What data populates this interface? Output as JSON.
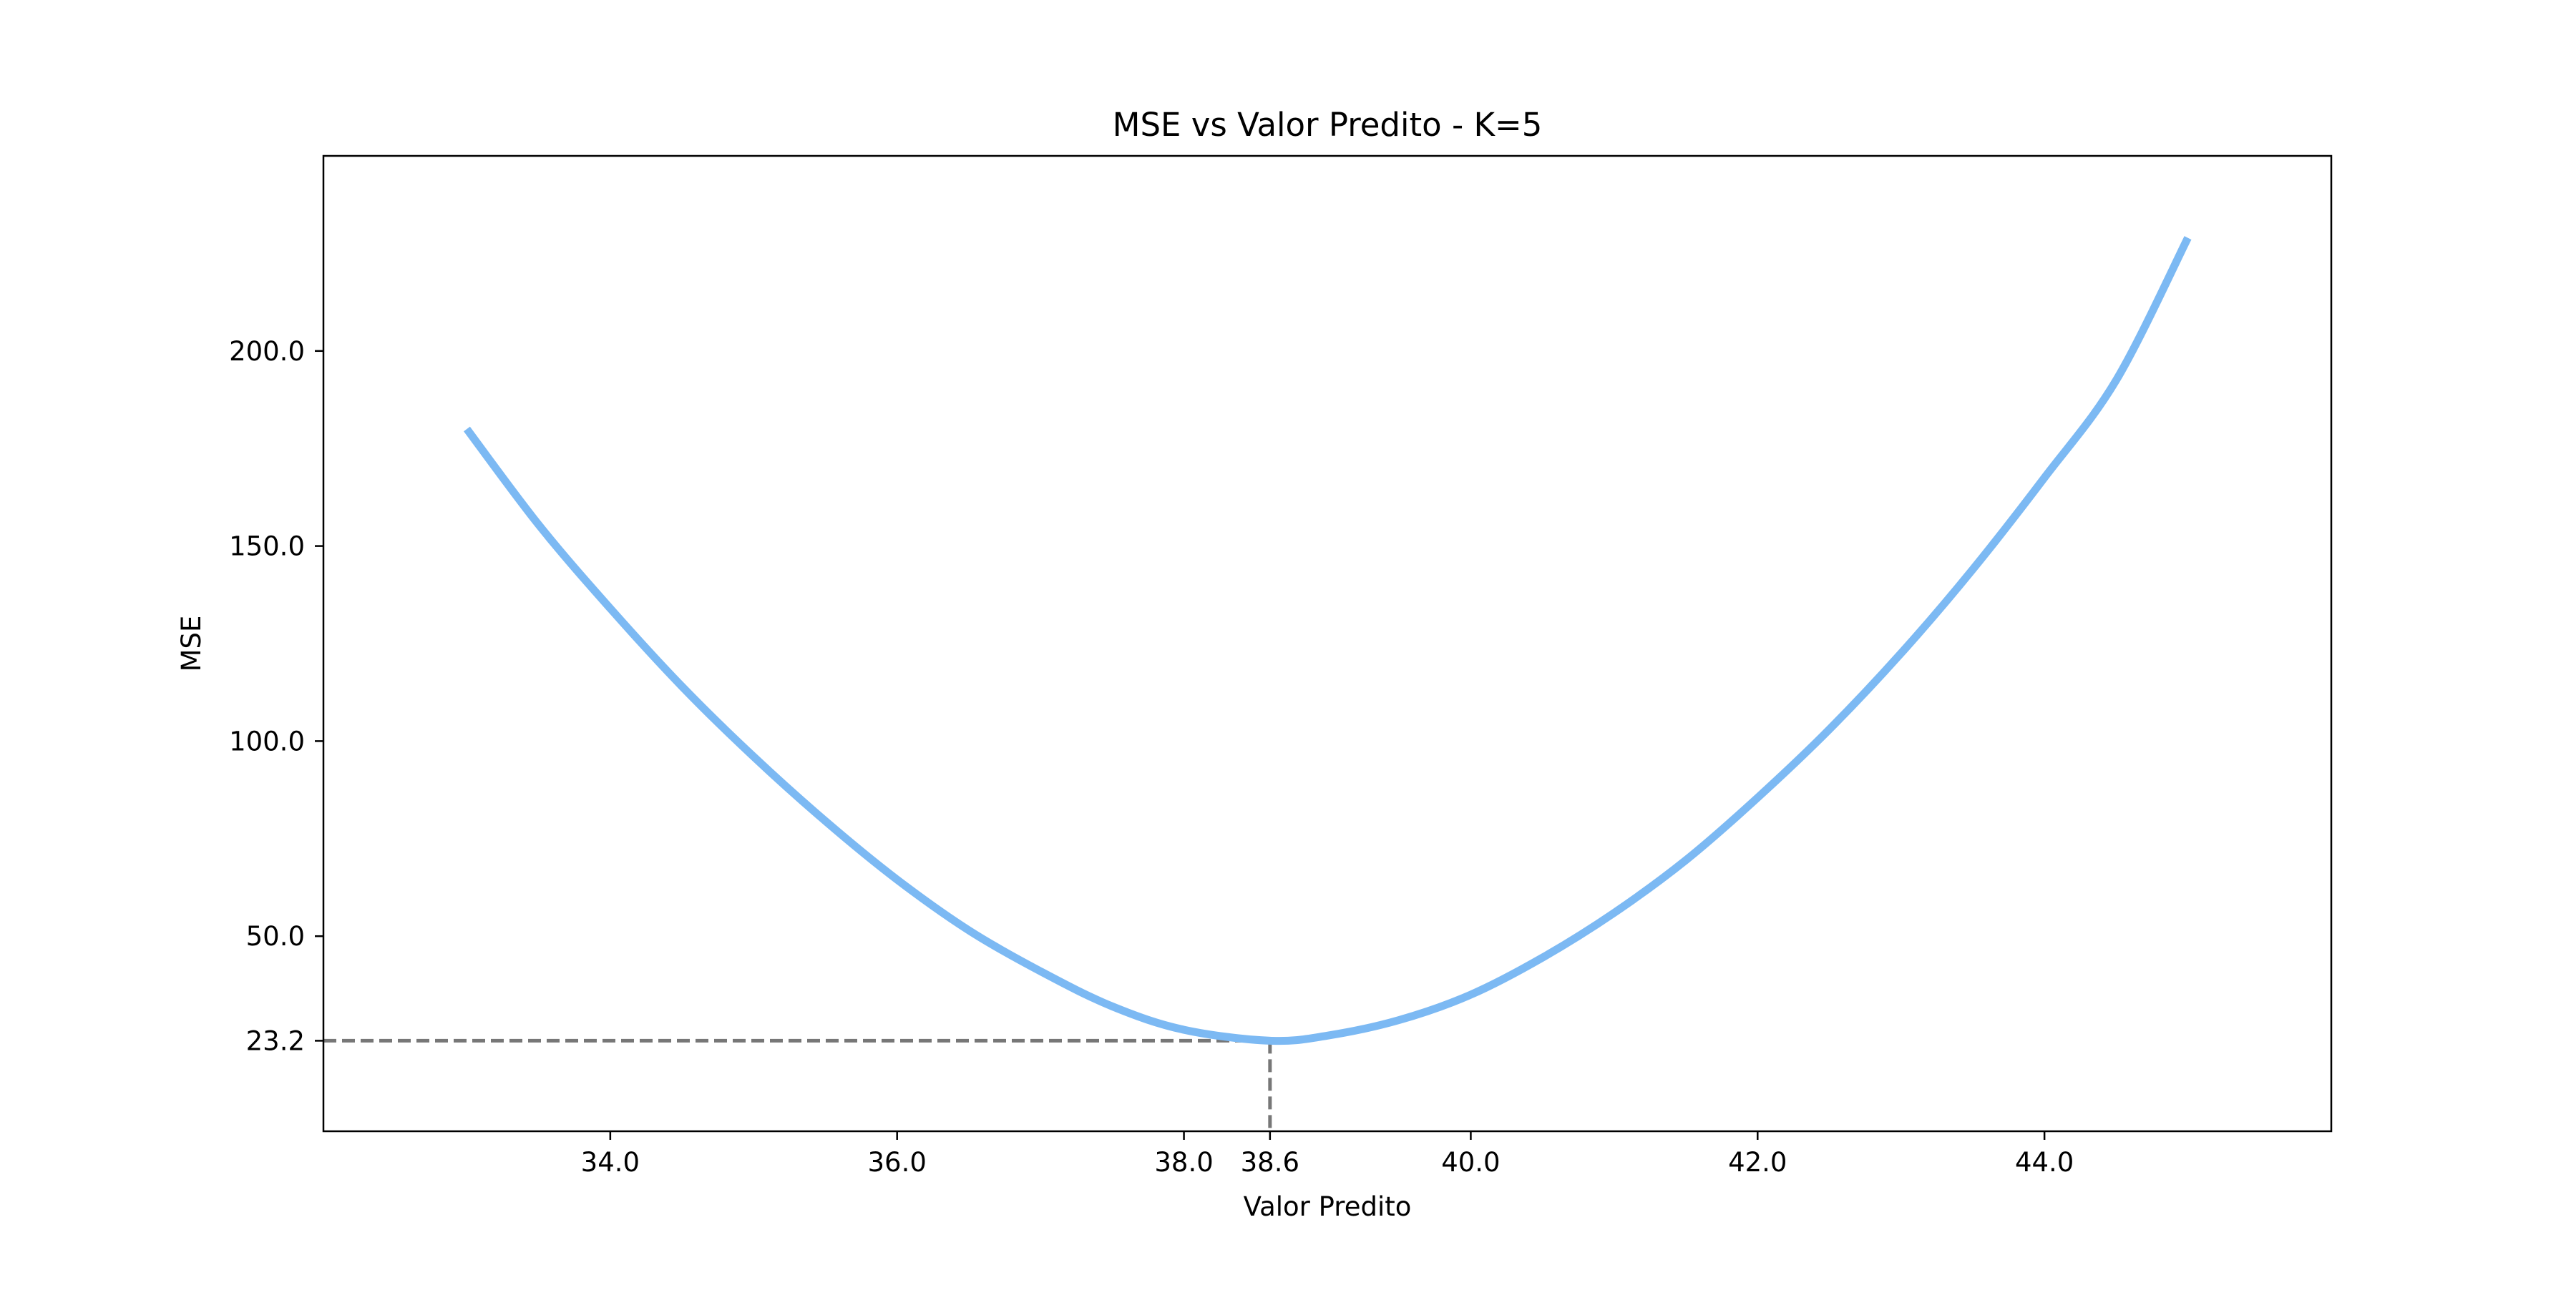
{
  "chart_data": {
    "type": "line",
    "title": "MSE vs Valor Predito - K=5",
    "xlabel": "Valor Predito",
    "ylabel": "MSE",
    "xlim": [
      32.0,
      46.0
    ],
    "ylim": [
      0.0,
      250.0
    ],
    "x_ticks": [
      34.0,
      36.0,
      38.0,
      38.6,
      40.0,
      42.0,
      44.0
    ],
    "x_tick_labels": [
      "34.0",
      "36.0",
      "38.0",
      "38.6",
      "40.0",
      "42.0",
      "44.0"
    ],
    "y_ticks": [
      23.2,
      50.0,
      100.0,
      150.0,
      200.0
    ],
    "y_tick_labels": [
      "23.2",
      "50.0",
      "100.0",
      "150.0",
      "200.0"
    ],
    "grid": false,
    "series": [
      {
        "color": "#7cb9f3",
        "x": [
          33.0,
          33.5,
          34.0,
          34.5,
          35.0,
          35.5,
          36.0,
          36.5,
          37.0,
          37.5,
          38.0,
          38.6,
          39.0,
          39.5,
          40.0,
          40.5,
          41.0,
          41.5,
          42.0,
          42.5,
          43.0,
          43.5,
          44.0,
          44.5,
          45.0
        ],
        "y": [
          180.0,
          155.5,
          134.0,
          114.0,
          96.0,
          79.5,
          64.5,
          51.5,
          41.0,
          32.0,
          26.0,
          23.2,
          24.5,
          28.5,
          35.0,
          44.5,
          56.0,
          69.5,
          85.5,
          103.0,
          122.5,
          144.0,
          167.5,
          192.5,
          229.0
        ]
      }
    ],
    "annotations": {
      "min_x": 38.6,
      "min_y": 23.2,
      "line_style": "dashed",
      "line_color": "#777777"
    }
  }
}
